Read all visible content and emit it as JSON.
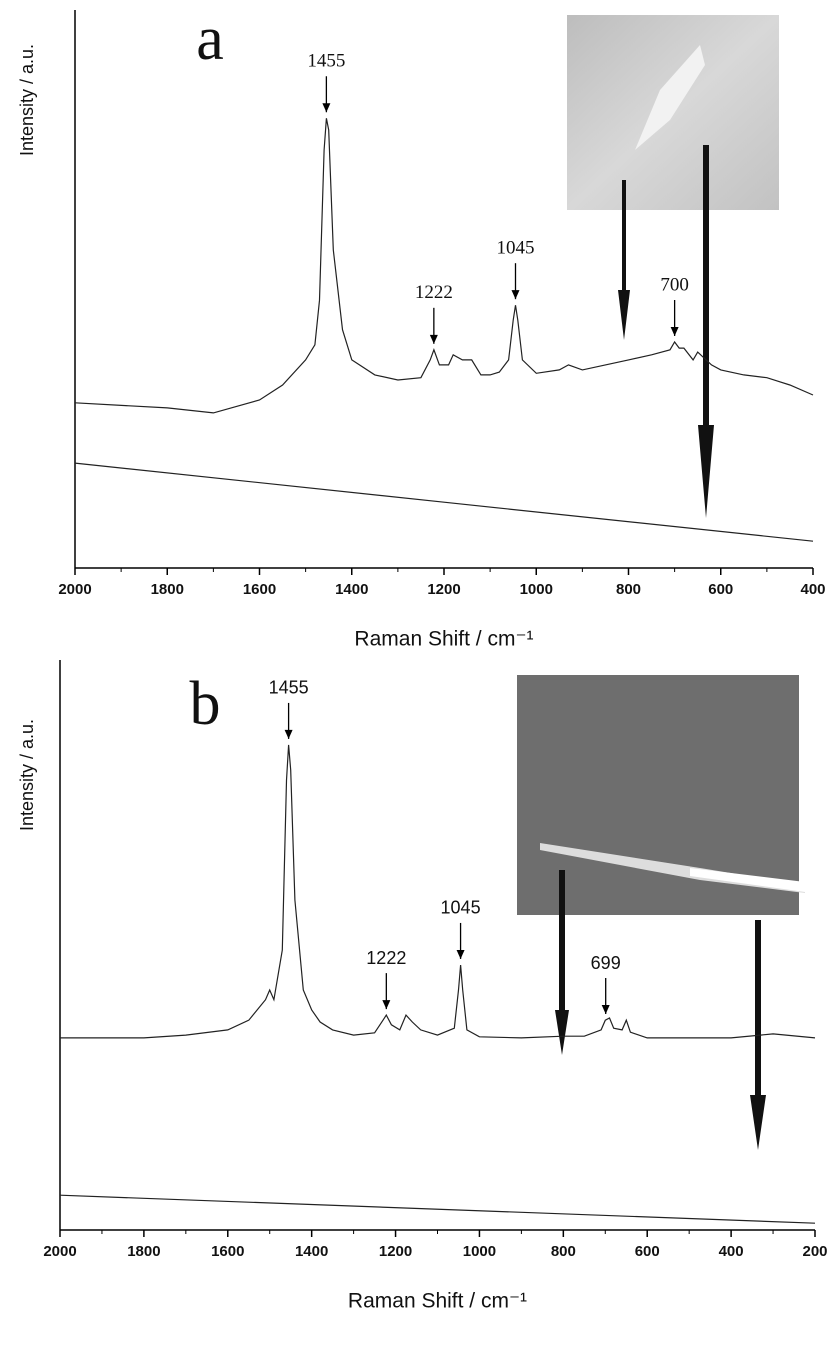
{
  "chart_data": [
    {
      "type": "line",
      "panel_label": "a",
      "x_label": "Raman Shift / cm⁻¹",
      "y_label": "Intensity / a.u.",
      "xlim": [
        2000,
        400
      ],
      "xticks": [
        2000,
        1800,
        1600,
        1400,
        1200,
        1000,
        800,
        600,
        400
      ],
      "ylim": [
        0,
        100
      ],
      "peaks": [
        1455,
        1222,
        1045,
        700
      ],
      "series": [
        {
          "color": "#222222",
          "x": [
            2000,
            1800,
            1700,
            1600,
            1550,
            1500,
            1480,
            1470,
            1460,
            1455,
            1450,
            1440,
            1420,
            1400,
            1350,
            1300,
            1250,
            1230,
            1222,
            1210,
            1190,
            1180,
            1160,
            1140,
            1120,
            1100,
            1080,
            1060,
            1050,
            1045,
            1040,
            1030,
            1000,
            950,
            930,
            900,
            850,
            800,
            750,
            710,
            700,
            690,
            680,
            660,
            650,
            620,
            600,
            550,
            500,
            450,
            400
          ],
          "values": [
            29.6,
            28.7,
            27.8,
            30.1,
            32.8,
            37.3,
            40.0,
            48.0,
            74.9,
            80.6,
            78.5,
            57.0,
            42.7,
            37.3,
            34.6,
            33.7,
            34.1,
            37.3,
            39.1,
            36.4,
            36.4,
            38.2,
            37.3,
            37.3,
            34.6,
            34.6,
            35.1,
            37.3,
            44.4,
            47.1,
            44.4,
            37.3,
            34.9,
            35.5,
            36.4,
            35.5,
            36.4,
            37.3,
            38.2,
            39.1,
            40.5,
            39.4,
            39.4,
            37.3,
            38.7,
            36.4,
            35.5,
            34.6,
            34.1,
            32.8,
            31.0
          ]
        },
        {
          "color": "#222222",
          "x": [
            2000,
            1200,
            400
          ],
          "values": [
            18.8,
            11.8,
            4.8
          ]
        }
      ]
    },
    {
      "type": "line",
      "panel_label": "b",
      "x_label": "Raman Shift / cm⁻¹",
      "y_label": "Intensity / a.u.",
      "xlim": [
        2000,
        200
      ],
      "xticks": [
        2000,
        1800,
        1600,
        1400,
        1200,
        1000,
        800,
        600,
        400,
        200
      ],
      "ylim": [
        0,
        100
      ],
      "peaks": [
        1455,
        1222,
        1045,
        699
      ],
      "series": [
        {
          "color": "#222222",
          "x": [
            2000,
            1800,
            1700,
            1600,
            1550,
            1510,
            1500,
            1490,
            1470,
            1460,
            1455,
            1450,
            1440,
            1420,
            1400,
            1380,
            1350,
            1300,
            1250,
            1230,
            1222,
            1210,
            1190,
            1175,
            1160,
            1140,
            1100,
            1060,
            1050,
            1045,
            1040,
            1030,
            1000,
            900,
            800,
            750,
            710,
            700,
            690,
            680,
            660,
            650,
            640,
            600,
            500,
            400,
            300,
            200
          ],
          "values": [
            33.7,
            33.7,
            34.2,
            35.1,
            36.8,
            40.4,
            42.1,
            40.4,
            49.1,
            78.9,
            85.1,
            80.7,
            57.9,
            42.1,
            38.6,
            36.5,
            35.1,
            34.2,
            34.6,
            36.8,
            37.7,
            36.0,
            35.1,
            37.7,
            36.5,
            35.1,
            34.2,
            35.4,
            42.1,
            46.5,
            42.1,
            35.1,
            33.9,
            33.7,
            34.0,
            34.0,
            35.1,
            36.8,
            37.2,
            35.4,
            35.1,
            36.8,
            34.7,
            33.7,
            33.7,
            33.7,
            34.4,
            33.7
          ]
        },
        {
          "color": "#222222",
          "x": [
            2000,
            200
          ],
          "values": [
            6.1,
            1.2
          ]
        }
      ]
    }
  ]
}
